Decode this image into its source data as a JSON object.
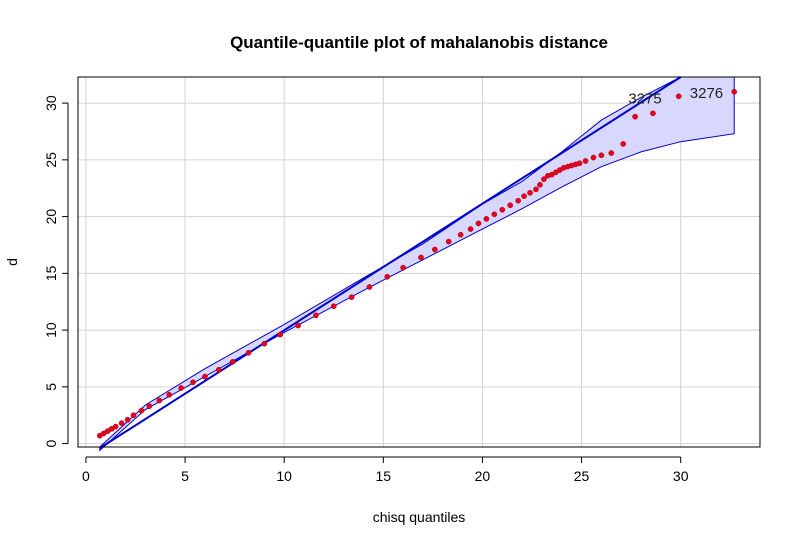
{
  "chart_data": {
    "type": "scatter",
    "title": "Quantile-quantile plot of mahalanobis distance",
    "xlabel": "chisq quantiles",
    "ylabel": "d",
    "xlim": [
      -0.4,
      34
    ],
    "ylim": [
      -0.3,
      32.3
    ],
    "xticks": [
      0,
      5,
      10,
      15,
      20,
      25,
      30
    ],
    "yticks": [
      0,
      5,
      10,
      15,
      20,
      25,
      30
    ],
    "grid": true,
    "point_color": "#e8001c",
    "line_color": "#0000cd",
    "band_fill": "#d8d8ff",
    "reference_line": {
      "x": [
        0.7,
        30.0
      ],
      "y": [
        -0.4,
        32.3
      ]
    },
    "confidence_band": {
      "x": [
        0.7,
        3,
        6,
        10,
        14,
        17,
        20,
        22,
        24,
        26,
        28,
        30,
        32.7
      ],
      "lower": [
        -0.6,
        3.0,
        5.9,
        9.8,
        13.5,
        16.2,
        18.9,
        20.7,
        22.6,
        24.4,
        25.7,
        26.6,
        27.3
      ],
      "upper": [
        -0.3,
        3.4,
        6.6,
        10.5,
        14.6,
        17.6,
        21.1,
        23.1,
        25.7,
        28.5,
        30.5,
        32.3,
        32.3
      ]
    },
    "labels": [
      {
        "text": "3275",
        "x": 28.2,
        "y": 30.4
      },
      {
        "text": "3276",
        "x": 31.3,
        "y": 30.9
      }
    ],
    "points": {
      "x": [
        0.7,
        0.9,
        1.1,
        1.3,
        1.5,
        1.8,
        2.1,
        2.4,
        2.8,
        3.2,
        3.7,
        4.2,
        4.8,
        5.4,
        6.0,
        6.7,
        7.4,
        8.2,
        9.0,
        9.8,
        10.7,
        11.6,
        12.5,
        13.4,
        14.3,
        15.2,
        16.0,
        16.9,
        17.6,
        18.3,
        18.9,
        19.4,
        19.8,
        20.2,
        20.6,
        21.0,
        21.4,
        21.8,
        22.1,
        22.4,
        22.7,
        22.9,
        23.1,
        23.3,
        23.5,
        23.7,
        23.9,
        24.1,
        24.3,
        24.5,
        24.7,
        24.9,
        25.2,
        25.6,
        26.0,
        26.5,
        27.1,
        27.7,
        28.6,
        29.9,
        32.7
      ],
      "y": [
        0.7,
        0.9,
        1.1,
        1.3,
        1.5,
        1.8,
        2.1,
        2.5,
        2.9,
        3.3,
        3.8,
        4.3,
        4.9,
        5.4,
        5.9,
        6.5,
        7.2,
        8.0,
        8.8,
        9.6,
        10.4,
        11.3,
        12.1,
        12.9,
        13.8,
        14.7,
        15.5,
        16.4,
        17.1,
        17.8,
        18.4,
        18.9,
        19.4,
        19.8,
        20.2,
        20.6,
        21.0,
        21.4,
        21.8,
        22.1,
        22.4,
        22.8,
        23.3,
        23.6,
        23.7,
        23.9,
        24.1,
        24.3,
        24.4,
        24.5,
        24.6,
        24.7,
        24.9,
        25.2,
        25.4,
        25.6,
        26.4,
        28.8,
        29.1,
        30.6,
        31.0
      ]
    }
  }
}
